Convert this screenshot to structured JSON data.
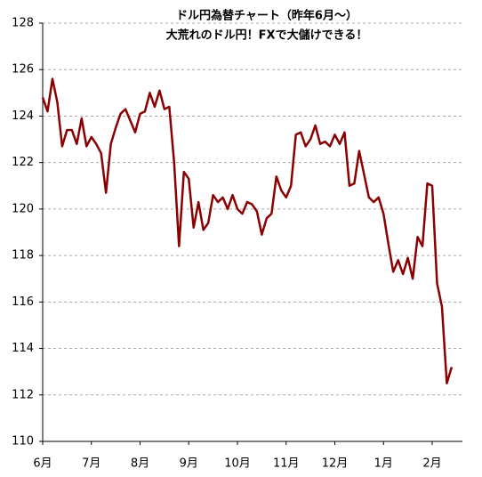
{
  "chart_data": {
    "type": "line",
    "title": [
      "ドル円為替チャート（昨年6月～）",
      "大荒れのドル円！FXで大儲けできる！"
    ],
    "categories": [
      "6月",
      null,
      null,
      null,
      null,
      null,
      null,
      null,
      null,
      null,
      "7月",
      null,
      null,
      null,
      null,
      null,
      null,
      null,
      null,
      null,
      "8月",
      null,
      null,
      null,
      null,
      null,
      null,
      null,
      null,
      null,
      "9月",
      null,
      null,
      null,
      null,
      null,
      null,
      null,
      null,
      null,
      "10月",
      null,
      null,
      null,
      null,
      null,
      null,
      null,
      null,
      null,
      "11月",
      null,
      null,
      null,
      null,
      null,
      null,
      null,
      null,
      null,
      "12月",
      null,
      null,
      null,
      null,
      null,
      null,
      null,
      null,
      null,
      "1月",
      null,
      null,
      null,
      null,
      null,
      null,
      null,
      null,
      null,
      "2月",
      null,
      null,
      null,
      null
    ],
    "series": [
      {
        "color": "#8b0000",
        "values": [
          124.8,
          124.2,
          125.6,
          124.6,
          122.7,
          123.4,
          123.4,
          122.8,
          123.9,
          122.7,
          123.1,
          122.8,
          122.4,
          120.7,
          122.8,
          123.5,
          124.1,
          124.3,
          123.8,
          123.3,
          124.1,
          124.2,
          125.0,
          124.4,
          125.1,
          124.3,
          124.4,
          122.0,
          118.4,
          121.6,
          121.3,
          119.2,
          120.3,
          119.1,
          119.4,
          120.6,
          120.3,
          120.5,
          120.0,
          120.6,
          120.0,
          119.8,
          120.3,
          120.2,
          119.9,
          118.9,
          119.6,
          119.8,
          121.4,
          120.8,
          120.5,
          121.0,
          123.2,
          123.3,
          122.7,
          123.0,
          123.6,
          122.8,
          122.9,
          122.7,
          123.2,
          122.8,
          123.3,
          121.0,
          121.1,
          122.5,
          121.5,
          120.5,
          120.3,
          120.5,
          119.8,
          118.5,
          117.3,
          117.8,
          117.2,
          117.9,
          117.0,
          118.8,
          118.4,
          121.1,
          121.0,
          116.8,
          115.8,
          112.5,
          113.2
        ]
      }
    ],
    "ylim": [
      110,
      128
    ],
    "yticks": [
      110,
      112,
      114,
      116,
      118,
      120,
      122,
      124,
      126,
      128
    ],
    "grid": true
  }
}
